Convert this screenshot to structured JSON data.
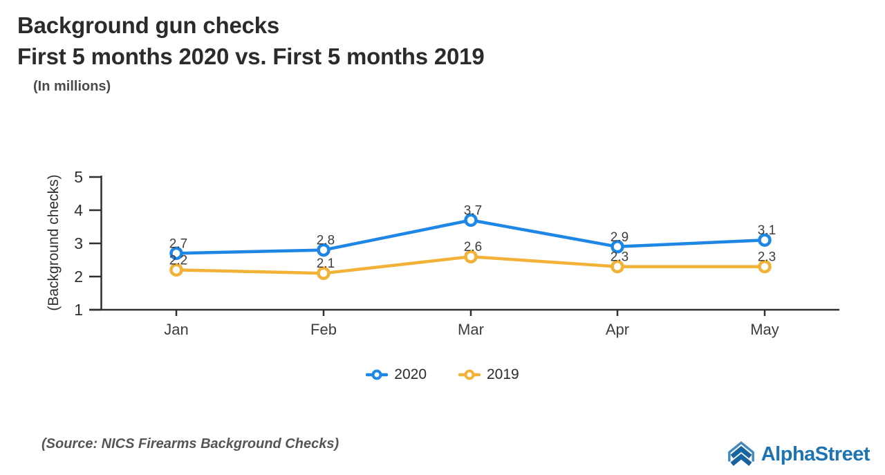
{
  "header": {
    "title_line1": "Background gun checks",
    "title_line2": "First 5 months 2020 vs. First 5 months 2019",
    "subtitle": "(In millions)"
  },
  "chart_data": {
    "type": "line",
    "categories": [
      "Jan",
      "Feb",
      "Mar",
      "Apr",
      "May"
    ],
    "series": [
      {
        "name": "2020",
        "color": "#1e87e5",
        "values": [
          2.7,
          2.8,
          3.7,
          2.9,
          3.1
        ]
      },
      {
        "name": "2019",
        "color": "#f2b137",
        "values": [
          2.2,
          2.1,
          2.6,
          2.3,
          2.3
        ]
      }
    ],
    "title": "Background gun checks — First 5 months 2020 vs. First 5 months 2019",
    "xlabel": "",
    "ylabel": "(Background checks)",
    "yticks": [
      1,
      2,
      3,
      4,
      5
    ],
    "ylim": [
      1,
      5
    ],
    "grid": false,
    "marker": "open-circle",
    "data_labels": true,
    "legend_position": "bottom",
    "axis_color": "#2f2f2f",
    "label_color": "#3d3d3d"
  },
  "footer": {
    "source": "(Source: NICS Firearms Background Checks)",
    "brand": "AlphaStreet"
  },
  "icons": {
    "brand_mark": "alphastreet-chevron-logo",
    "brand_mark_outer_color": "#4289c2",
    "brand_mark_inner_color": "#15639f"
  }
}
